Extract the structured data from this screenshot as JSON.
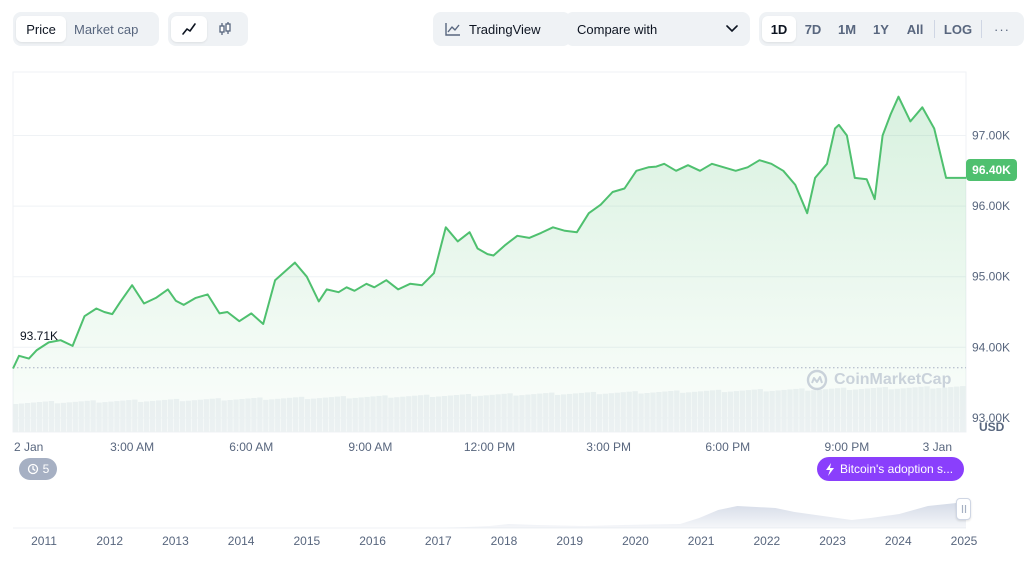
{
  "toolbar": {
    "type_tabs": [
      "Price",
      "Market cap"
    ],
    "tradingview_label": "TradingView",
    "compare_label": "Compare with",
    "ranges": [
      "1D",
      "7D",
      "1M",
      "1Y",
      "All"
    ],
    "log_label": "LOG",
    "more_label": "···"
  },
  "events": {
    "count": "5"
  },
  "news": {
    "label": "Bitcoin's adoption s..."
  },
  "watermark": {
    "text": "CoinMarketCap"
  },
  "colors": {
    "line": "#4fc06f",
    "accent": "#8a3ffc",
    "grid": "#eff2f5"
  },
  "icons": [
    "line-chart-icon",
    "candlestick-icon",
    "tradingview-chart-icon",
    "chevron-down-icon",
    "history-icon",
    "lightning-icon",
    "coinmarketcap-logo-icon",
    "pause-handle-icon"
  ],
  "chart_data": {
    "type": "line",
    "currency": "USD",
    "current_price_label": "96.40K",
    "open_price_label": "93.71K",
    "open_price": 93710,
    "ylim": [
      92800,
      97900
    ],
    "yticks": [
      93000,
      94000,
      95000,
      96000,
      97000
    ],
    "ytick_labels": [
      "93.00K",
      "94.00K",
      "95.00K",
      "96.00K",
      "97.00K"
    ],
    "xlim": [
      0,
      24
    ],
    "xticks": [
      0,
      3,
      6,
      9,
      12,
      15,
      18,
      21,
      24
    ],
    "xtick_labels": [
      "2 Jan",
      "3:00 AM",
      "6:00 AM",
      "9:00 AM",
      "12:00 PM",
      "3:00 PM",
      "6:00 PM",
      "9:00 PM",
      "3 Jan"
    ],
    "series": [
      {
        "x": [
          0,
          0.15,
          0.4,
          0.6,
          0.9,
          1.2,
          1.5,
          1.8,
          2.1,
          2.3,
          2.5,
          2.7,
          3.0,
          3.3,
          3.6,
          3.9,
          4.1,
          4.3,
          4.6,
          4.9,
          5.2,
          5.4,
          5.7,
          6.0,
          6.3,
          6.6,
          6.9,
          7.1,
          7.4,
          7.7,
          7.9,
          8.2,
          8.4,
          8.6,
          8.9,
          9.1,
          9.4,
          9.7,
          10.0,
          10.3,
          10.6,
          10.9,
          11.2,
          11.5,
          11.7,
          11.95,
          12.1,
          12.4,
          12.7,
          13.0,
          13.3,
          13.6,
          13.9,
          14.2,
          14.5,
          14.8,
          15.1,
          15.4,
          15.7,
          16.0,
          16.2,
          16.4,
          16.7,
          17.0,
          17.3,
          17.6,
          17.9,
          18.2,
          18.5,
          18.8,
          19.1,
          19.4,
          19.7,
          20.0,
          20.2,
          20.5,
          20.7,
          20.8,
          21.0,
          21.2,
          21.5,
          21.7,
          21.9,
          22.1,
          22.3,
          22.6,
          22.9,
          23.2,
          23.5,
          23.8,
          24.0
        ],
        "y": [
          93700,
          93880,
          93840,
          93960,
          94070,
          94100,
          94020,
          94440,
          94550,
          94500,
          94470,
          94640,
          94880,
          94620,
          94700,
          94820,
          94660,
          94600,
          94700,
          94750,
          94480,
          94500,
          94370,
          94480,
          94330,
          94950,
          95100,
          95200,
          95000,
          94650,
          94820,
          94780,
          94850,
          94800,
          94900,
          94850,
          94950,
          94820,
          94900,
          94880,
          95050,
          95700,
          95500,
          95630,
          95400,
          95320,
          95300,
          95450,
          95580,
          95550,
          95620,
          95700,
          95650,
          95630,
          95900,
          96020,
          96200,
          96250,
          96500,
          96550,
          96560,
          96600,
          96500,
          96580,
          96500,
          96600,
          96550,
          96500,
          96550,
          96650,
          96600,
          96500,
          96300,
          95900,
          96400,
          96600,
          97100,
          97150,
          97000,
          96400,
          96380,
          96100,
          97000,
          97300,
          97550,
          97200,
          97400,
          97100,
          96400,
          96400,
          96400
        ]
      }
    ],
    "volume": {
      "color": "#eff2f5"
    },
    "navigator": {
      "year_labels": [
        "2011",
        "2012",
        "2013",
        "2014",
        "2015",
        "2016",
        "2017",
        "2018",
        "2019",
        "2020",
        "2021",
        "2022",
        "2023",
        "2024",
        "2025"
      ]
    }
  }
}
